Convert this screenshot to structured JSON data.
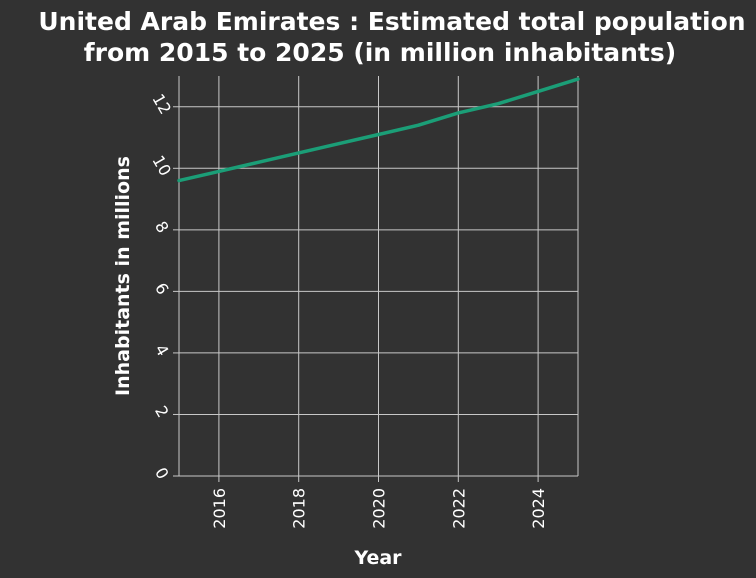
{
  "chart_data": {
    "type": "line",
    "title_lines": [
      "United Arab Emirates : Estimated total population",
      "from 2015 to 2025 (in million inhabitants)"
    ],
    "xlabel": "Year",
    "ylabel": "Inhabitants in millions",
    "xlim": [
      2015,
      2025
    ],
    "ylim": [
      0,
      13
    ],
    "xticks": [
      2016,
      2018,
      2020,
      2022,
      2024
    ],
    "yticks": [
      0,
      2,
      4,
      6,
      8,
      10,
      12
    ],
    "grid": true,
    "colors": {
      "background": "#323232",
      "line": "#1b9e77",
      "text": "#ffffff"
    },
    "series": [
      {
        "x": [
          2015,
          2016,
          2017,
          2018,
          2019,
          2020,
          2021,
          2022,
          2023,
          2024,
          2025
        ],
        "y": [
          9.6,
          9.9,
          10.2,
          10.5,
          10.8,
          11.1,
          11.4,
          11.8,
          12.1,
          12.5,
          12.9
        ]
      }
    ]
  }
}
